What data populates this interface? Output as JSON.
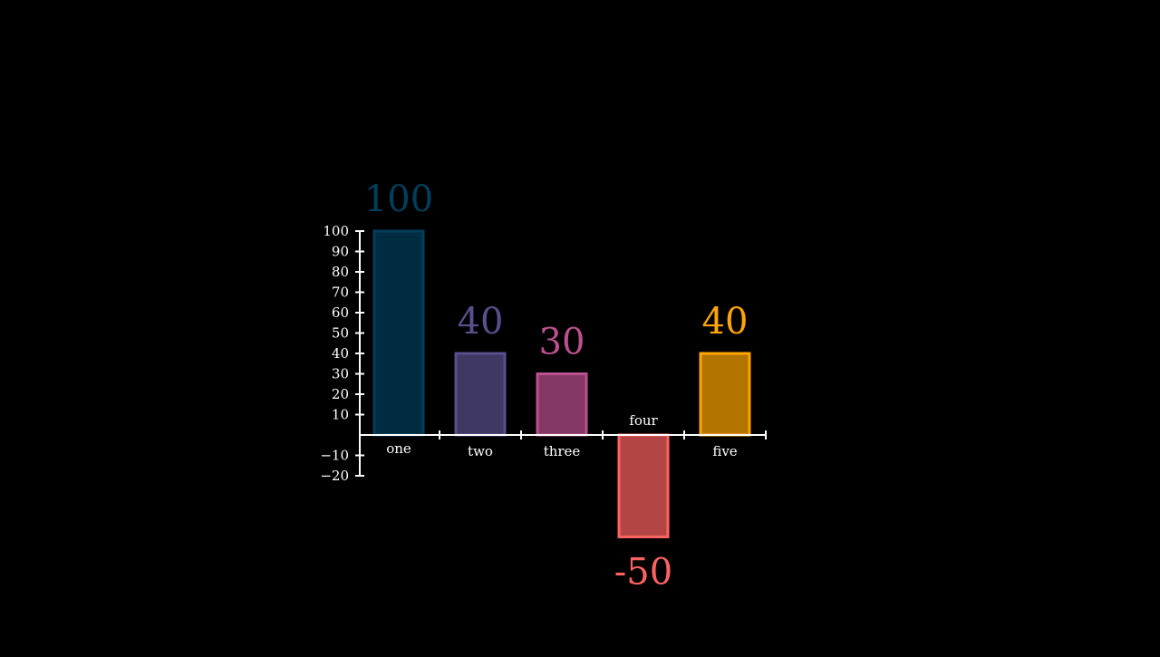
{
  "chart_data": {
    "type": "bar",
    "categories": [
      "one",
      "two",
      "three",
      "four",
      "five"
    ],
    "values": [
      100,
      40,
      30,
      -50,
      40
    ],
    "value_labels": [
      "100",
      "40",
      "30",
      "-50",
      "40"
    ],
    "colors": [
      "#003F5C",
      "#58508D",
      "#BC5090",
      "#FF6361",
      "#FFA600"
    ],
    "ylim": [
      -20,
      100
    ],
    "yticks": [
      -20,
      -10,
      10,
      20,
      30,
      40,
      50,
      60,
      70,
      80,
      90,
      100
    ],
    "ytick_labels": [
      "−20",
      "−10",
      "10",
      "20",
      "30",
      "40",
      "50",
      "60",
      "70",
      "80",
      "90",
      "100"
    ],
    "title": "",
    "xlabel": "",
    "ylabel": "",
    "grid": false,
    "legend": "none",
    "background": "#000000",
    "axis_color": "#ffffff"
  }
}
